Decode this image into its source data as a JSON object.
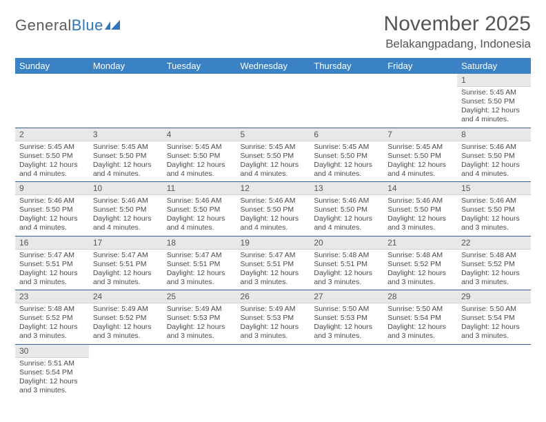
{
  "logo": {
    "text1": "General",
    "text2": "Blue"
  },
  "title": "November 2025",
  "location": "Belakangpadang, Indonesia",
  "colors": {
    "header_bg": "#3b82c4",
    "header_text": "#ffffff",
    "daynum_bg": "#e8e8e8",
    "row_border": "#2f5d9e",
    "logo_accent": "#2f76ba"
  },
  "weekdays": [
    "Sunday",
    "Monday",
    "Tuesday",
    "Wednesday",
    "Thursday",
    "Friday",
    "Saturday"
  ],
  "weeks": [
    [
      null,
      null,
      null,
      null,
      null,
      null,
      {
        "n": "1",
        "sr": "5:45 AM",
        "ss": "5:50 PM",
        "dl": "12 hours and 4 minutes."
      }
    ],
    [
      {
        "n": "2",
        "sr": "5:45 AM",
        "ss": "5:50 PM",
        "dl": "12 hours and 4 minutes."
      },
      {
        "n": "3",
        "sr": "5:45 AM",
        "ss": "5:50 PM",
        "dl": "12 hours and 4 minutes."
      },
      {
        "n": "4",
        "sr": "5:45 AM",
        "ss": "5:50 PM",
        "dl": "12 hours and 4 minutes."
      },
      {
        "n": "5",
        "sr": "5:45 AM",
        "ss": "5:50 PM",
        "dl": "12 hours and 4 minutes."
      },
      {
        "n": "6",
        "sr": "5:45 AM",
        "ss": "5:50 PM",
        "dl": "12 hours and 4 minutes."
      },
      {
        "n": "7",
        "sr": "5:45 AM",
        "ss": "5:50 PM",
        "dl": "12 hours and 4 minutes."
      },
      {
        "n": "8",
        "sr": "5:46 AM",
        "ss": "5:50 PM",
        "dl": "12 hours and 4 minutes."
      }
    ],
    [
      {
        "n": "9",
        "sr": "5:46 AM",
        "ss": "5:50 PM",
        "dl": "12 hours and 4 minutes."
      },
      {
        "n": "10",
        "sr": "5:46 AM",
        "ss": "5:50 PM",
        "dl": "12 hours and 4 minutes."
      },
      {
        "n": "11",
        "sr": "5:46 AM",
        "ss": "5:50 PM",
        "dl": "12 hours and 4 minutes."
      },
      {
        "n": "12",
        "sr": "5:46 AM",
        "ss": "5:50 PM",
        "dl": "12 hours and 4 minutes."
      },
      {
        "n": "13",
        "sr": "5:46 AM",
        "ss": "5:50 PM",
        "dl": "12 hours and 4 minutes."
      },
      {
        "n": "14",
        "sr": "5:46 AM",
        "ss": "5:50 PM",
        "dl": "12 hours and 3 minutes."
      },
      {
        "n": "15",
        "sr": "5:46 AM",
        "ss": "5:50 PM",
        "dl": "12 hours and 3 minutes."
      }
    ],
    [
      {
        "n": "16",
        "sr": "5:47 AM",
        "ss": "5:51 PM",
        "dl": "12 hours and 3 minutes."
      },
      {
        "n": "17",
        "sr": "5:47 AM",
        "ss": "5:51 PM",
        "dl": "12 hours and 3 minutes."
      },
      {
        "n": "18",
        "sr": "5:47 AM",
        "ss": "5:51 PM",
        "dl": "12 hours and 3 minutes."
      },
      {
        "n": "19",
        "sr": "5:47 AM",
        "ss": "5:51 PM",
        "dl": "12 hours and 3 minutes."
      },
      {
        "n": "20",
        "sr": "5:48 AM",
        "ss": "5:51 PM",
        "dl": "12 hours and 3 minutes."
      },
      {
        "n": "21",
        "sr": "5:48 AM",
        "ss": "5:52 PM",
        "dl": "12 hours and 3 minutes."
      },
      {
        "n": "22",
        "sr": "5:48 AM",
        "ss": "5:52 PM",
        "dl": "12 hours and 3 minutes."
      }
    ],
    [
      {
        "n": "23",
        "sr": "5:48 AM",
        "ss": "5:52 PM",
        "dl": "12 hours and 3 minutes."
      },
      {
        "n": "24",
        "sr": "5:49 AM",
        "ss": "5:52 PM",
        "dl": "12 hours and 3 minutes."
      },
      {
        "n": "25",
        "sr": "5:49 AM",
        "ss": "5:53 PM",
        "dl": "12 hours and 3 minutes."
      },
      {
        "n": "26",
        "sr": "5:49 AM",
        "ss": "5:53 PM",
        "dl": "12 hours and 3 minutes."
      },
      {
        "n": "27",
        "sr": "5:50 AM",
        "ss": "5:53 PM",
        "dl": "12 hours and 3 minutes."
      },
      {
        "n": "28",
        "sr": "5:50 AM",
        "ss": "5:54 PM",
        "dl": "12 hours and 3 minutes."
      },
      {
        "n": "29",
        "sr": "5:50 AM",
        "ss": "5:54 PM",
        "dl": "12 hours and 3 minutes."
      }
    ],
    [
      {
        "n": "30",
        "sr": "5:51 AM",
        "ss": "5:54 PM",
        "dl": "12 hours and 3 minutes."
      },
      null,
      null,
      null,
      null,
      null,
      null
    ]
  ],
  "labels": {
    "sunrise": "Sunrise: ",
    "sunset": "Sunset: ",
    "daylight": "Daylight: "
  }
}
